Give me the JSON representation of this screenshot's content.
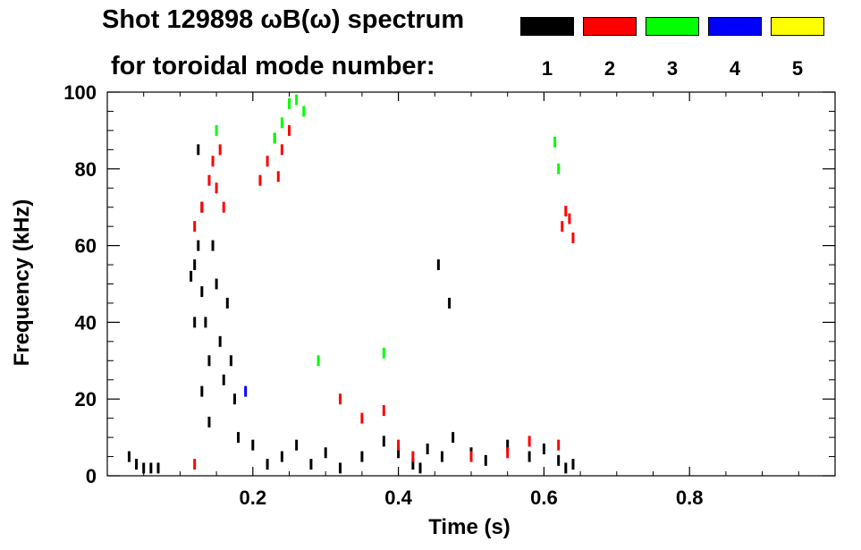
{
  "chart_data": {
    "type": "scatter",
    "title_line1": "Shot 129898 ωB(ω) spectrum",
    "title_line2": "for toroidal mode number:",
    "xlabel": "Time (s)",
    "ylabel": "Frequency (kHz)",
    "xlim": [
      0.0,
      1.0
    ],
    "ylim": [
      0,
      100
    ],
    "x_ticks": [
      "0.2",
      "0.4",
      "0.6",
      "0.8"
    ],
    "x_tick_values": [
      0.2,
      0.4,
      0.6,
      0.8
    ],
    "y_ticks": [
      "0",
      "20",
      "40",
      "60",
      "80",
      "100"
    ],
    "y_tick_values": [
      0,
      20,
      40,
      60,
      80,
      100
    ],
    "grid": false,
    "legend_placement": "top-right",
    "legend": [
      {
        "label": "1",
        "color": "#000000"
      },
      {
        "label": "2",
        "color": "#ff0000"
      },
      {
        "label": "3",
        "color": "#00ff00"
      },
      {
        "label": "4",
        "color": "#0000ff"
      },
      {
        "label": "5",
        "color": "#ffff00"
      }
    ],
    "series": [
      {
        "mode": "1",
        "color": "#000000",
        "points": [
          [
            0.03,
            5
          ],
          [
            0.04,
            3
          ],
          [
            0.05,
            2
          ],
          [
            0.06,
            2
          ],
          [
            0.07,
            2
          ],
          [
            0.115,
            52
          ],
          [
            0.12,
            55
          ],
          [
            0.125,
            60
          ],
          [
            0.13,
            48
          ],
          [
            0.135,
            40
          ],
          [
            0.14,
            30
          ],
          [
            0.13,
            22
          ],
          [
            0.14,
            14
          ],
          [
            0.145,
            60
          ],
          [
            0.15,
            50
          ],
          [
            0.155,
            35
          ],
          [
            0.16,
            25
          ],
          [
            0.165,
            45
          ],
          [
            0.17,
            30
          ],
          [
            0.175,
            20
          ],
          [
            0.18,
            10
          ],
          [
            0.125,
            85
          ],
          [
            0.13,
            70
          ],
          [
            0.12,
            40
          ],
          [
            0.2,
            8
          ],
          [
            0.22,
            3
          ],
          [
            0.24,
            5
          ],
          [
            0.26,
            8
          ],
          [
            0.28,
            3
          ],
          [
            0.3,
            6
          ],
          [
            0.32,
            2
          ],
          [
            0.35,
            5
          ],
          [
            0.38,
            9
          ],
          [
            0.4,
            6
          ],
          [
            0.42,
            3
          ],
          [
            0.43,
            2
          ],
          [
            0.44,
            7
          ],
          [
            0.46,
            5
          ],
          [
            0.475,
            10
          ],
          [
            0.5,
            6
          ],
          [
            0.52,
            4
          ],
          [
            0.55,
            8
          ],
          [
            0.58,
            5
          ],
          [
            0.6,
            7
          ],
          [
            0.62,
            4
          ],
          [
            0.63,
            2
          ],
          [
            0.64,
            3
          ],
          [
            0.47,
            45
          ],
          [
            0.455,
            55
          ]
        ]
      },
      {
        "mode": "2",
        "color": "#ff0000",
        "points": [
          [
            0.14,
            77
          ],
          [
            0.145,
            82
          ],
          [
            0.15,
            75
          ],
          [
            0.16,
            70
          ],
          [
            0.155,
            85
          ],
          [
            0.13,
            70
          ],
          [
            0.12,
            65
          ],
          [
            0.21,
            77
          ],
          [
            0.22,
            82
          ],
          [
            0.23,
            88
          ],
          [
            0.24,
            85
          ],
          [
            0.25,
            90
          ],
          [
            0.235,
            78
          ],
          [
            0.625,
            65
          ],
          [
            0.63,
            69
          ],
          [
            0.635,
            67
          ],
          [
            0.64,
            62
          ],
          [
            0.32,
            20
          ],
          [
            0.35,
            15
          ],
          [
            0.4,
            8
          ],
          [
            0.42,
            5
          ],
          [
            0.5,
            5
          ],
          [
            0.55,
            6
          ],
          [
            0.58,
            9
          ],
          [
            0.62,
            8
          ],
          [
            0.38,
            17
          ],
          [
            0.12,
            3
          ]
        ]
      },
      {
        "mode": "3",
        "color": "#00ff00",
        "points": [
          [
            0.23,
            88
          ],
          [
            0.24,
            92
          ],
          [
            0.25,
            97
          ],
          [
            0.26,
            98
          ],
          [
            0.27,
            95
          ],
          [
            0.15,
            90
          ],
          [
            0.62,
            80
          ],
          [
            0.615,
            87
          ],
          [
            0.29,
            30
          ],
          [
            0.38,
            32
          ]
        ]
      },
      {
        "mode": "4",
        "color": "#0000ff",
        "points": [
          [
            0.19,
            22
          ]
        ]
      },
      {
        "mode": "5",
        "color": "#ffff00",
        "points": []
      }
    ]
  }
}
